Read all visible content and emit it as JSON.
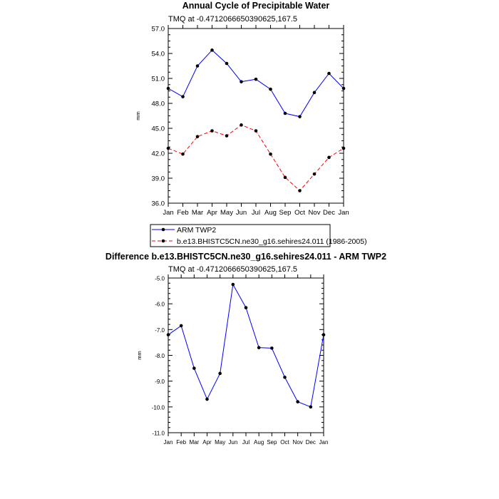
{
  "chart_data": [
    {
      "type": "line",
      "title": "Annual Cycle of Precipitable Water",
      "subtitle": "TMQ at -0.4712066650390625,167.5",
      "ylabel": "mm",
      "xlabel": "",
      "ylim": [
        36.0,
        57.0
      ],
      "yticks": [
        "57.0",
        "54.0",
        "51.0",
        "48.0",
        "45.0",
        "42.0",
        "39.0",
        "36.0"
      ],
      "categories": [
        "Jan",
        "Feb",
        "Mar",
        "Apr",
        "May",
        "Jun",
        "Jul",
        "Aug",
        "Sep",
        "Oct",
        "Nov",
        "Dec",
        "Jan"
      ],
      "series": [
        {
          "name": "ARM TWP2",
          "color": "#0000ff",
          "dash": "solid",
          "values": [
            49.8,
            48.8,
            52.5,
            54.4,
            52.8,
            50.6,
            50.9,
            49.7,
            46.8,
            46.4,
            49.3,
            51.6,
            49.8
          ]
        },
        {
          "name": "b.e13.BHISTC5CN.ne30_g16.sehires24.011 (1986-2005)",
          "color": "#ff0000",
          "dash": "dashed",
          "values": [
            42.6,
            41.9,
            44.0,
            44.7,
            44.1,
            45.4,
            44.7,
            41.9,
            39.1,
            37.5,
            39.5,
            41.5,
            42.6
          ]
        }
      ],
      "legend_position": "bottom"
    },
    {
      "type": "line",
      "title": "Difference b.e13.BHISTC5CN.ne30_g16.sehires24.011 - ARM TWP2",
      "subtitle": "TMQ at -0.4712066650390625,167.5",
      "ylabel": "mm",
      "xlabel": "",
      "ylim": [
        -11.0,
        -5.0
      ],
      "yticks": [
        "-5.0",
        "-6.0",
        "-7.0",
        "-8.0",
        "-9.0",
        "-10.0",
        "-11.0"
      ],
      "categories": [
        "Jan",
        "Feb",
        "Mar",
        "Apr",
        "May",
        "Jun",
        "Jul",
        "Aug",
        "Sep",
        "Oct",
        "Nov",
        "Dec",
        "Jan"
      ],
      "series": [
        {
          "name": "Difference",
          "color": "#0000ff",
          "dash": "solid",
          "values": [
            -7.2,
            -6.85,
            -8.5,
            -9.7,
            -8.7,
            -5.25,
            -6.15,
            -7.7,
            -7.72,
            -8.85,
            -9.8,
            -10.0,
            -7.2
          ]
        }
      ]
    }
  ]
}
